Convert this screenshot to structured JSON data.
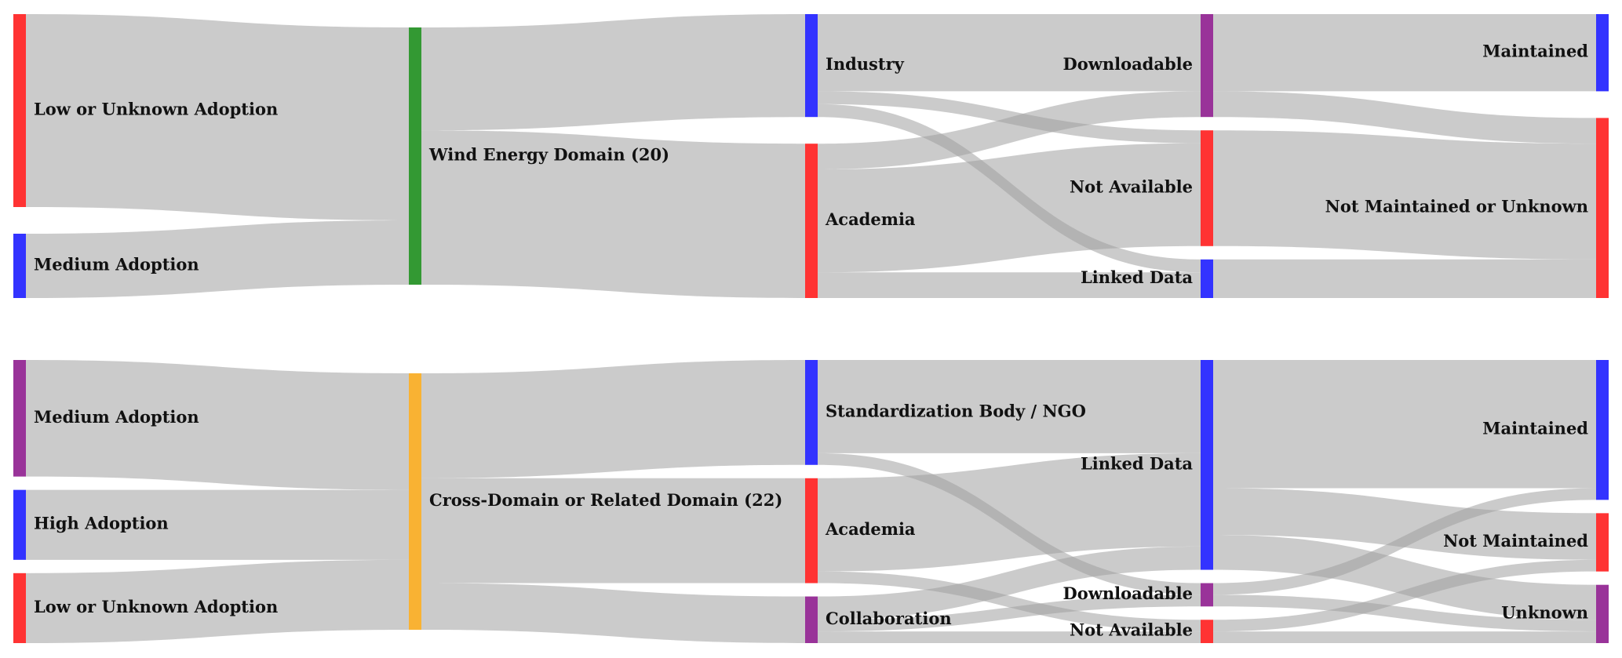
{
  "chart_data": [
    {
      "type": "sankey",
      "nodes": [
        {
          "name": "Low or Unknown Adoption",
          "color": "#ff3333"
        },
        {
          "name": "Medium Adoption",
          "color": "#3333ff"
        },
        {
          "name": "Wind Energy Domain (20)",
          "color": "#339933"
        },
        {
          "name": "Industry",
          "color": "#3333ff"
        },
        {
          "name": "Academia",
          "color": "#ff3333"
        },
        {
          "name": "Downloadable",
          "color": "#993399"
        },
        {
          "name": "Not Available",
          "color": "#ff3333"
        },
        {
          "name": "Linked Data",
          "color": "#3333ff"
        },
        {
          "name": "Maintained",
          "color": "#3333ff"
        },
        {
          "name": "Not Maintained or Unknown",
          "color": "#ff3333"
        }
      ],
      "links": [
        {
          "source": 0,
          "target": 2,
          "value": 15
        },
        {
          "source": 1,
          "target": 2,
          "value": 5
        },
        {
          "source": 2,
          "target": 3,
          "value": 8
        },
        {
          "source": 2,
          "target": 4,
          "value": 12
        },
        {
          "source": 3,
          "target": 5,
          "value": 6
        },
        {
          "source": 3,
          "target": 6,
          "value": 1
        },
        {
          "source": 3,
          "target": 7,
          "value": 1
        },
        {
          "source": 4,
          "target": 5,
          "value": 2
        },
        {
          "source": 4,
          "target": 6,
          "value": 8
        },
        {
          "source": 4,
          "target": 7,
          "value": 2
        },
        {
          "source": 5,
          "target": 8,
          "value": 6
        },
        {
          "source": 5,
          "target": 9,
          "value": 2
        },
        {
          "source": 6,
          "target": 9,
          "value": 9
        },
        {
          "source": 7,
          "target": 9,
          "value": 3
        }
      ]
    },
    {
      "type": "sankey",
      "nodes": [
        {
          "name": "Medium Adoption",
          "color": "#993399"
        },
        {
          "name": "High Adoption",
          "color": "#3333ff"
        },
        {
          "name": "Low or Unknown Adoption",
          "color": "#ff3333"
        },
        {
          "name": "Cross-Domain or Related Domain (22)",
          "color": "#f9b233"
        },
        {
          "name": "Standardization Body / NGO",
          "color": "#3333ff"
        },
        {
          "name": "Academia",
          "color": "#ff3333"
        },
        {
          "name": "Collaboration",
          "color": "#993399"
        },
        {
          "name": "Linked Data",
          "color": "#3333ff"
        },
        {
          "name": "Downloadable",
          "color": "#993399"
        },
        {
          "name": "Not Available",
          "color": "#ff3333"
        },
        {
          "name": "Maintained",
          "color": "#3333ff"
        },
        {
          "name": "Not Maintained",
          "color": "#ff3333"
        },
        {
          "name": "Unknown",
          "color": "#993399"
        }
      ],
      "links": [
        {
          "source": 0,
          "target": 3,
          "value": 10
        },
        {
          "source": 1,
          "target": 3,
          "value": 6
        },
        {
          "source": 2,
          "target": 3,
          "value": 6
        },
        {
          "source": 3,
          "target": 4,
          "value": 9
        },
        {
          "source": 3,
          "target": 5,
          "value": 9
        },
        {
          "source": 3,
          "target": 6,
          "value": 4
        },
        {
          "source": 4,
          "target": 7,
          "value": 8
        },
        {
          "source": 4,
          "target": 8,
          "value": 1
        },
        {
          "source": 5,
          "target": 7,
          "value": 8
        },
        {
          "source": 5,
          "target": 9,
          "value": 1
        },
        {
          "source": 6,
          "target": 7,
          "value": 2
        },
        {
          "source": 6,
          "target": 8,
          "value": 1
        },
        {
          "source": 6,
          "target": 9,
          "value": 1
        },
        {
          "source": 7,
          "target": 10,
          "value": 11
        },
        {
          "source": 7,
          "target": 11,
          "value": 4
        },
        {
          "source": 7,
          "target": 12,
          "value": 3
        },
        {
          "source": 8,
          "target": 10,
          "value": 1
        },
        {
          "source": 8,
          "target": 12,
          "value": 1
        },
        {
          "source": 9,
          "target": 11,
          "value": 1
        },
        {
          "source": 9,
          "target": 12,
          "value": 1
        }
      ]
    }
  ]
}
